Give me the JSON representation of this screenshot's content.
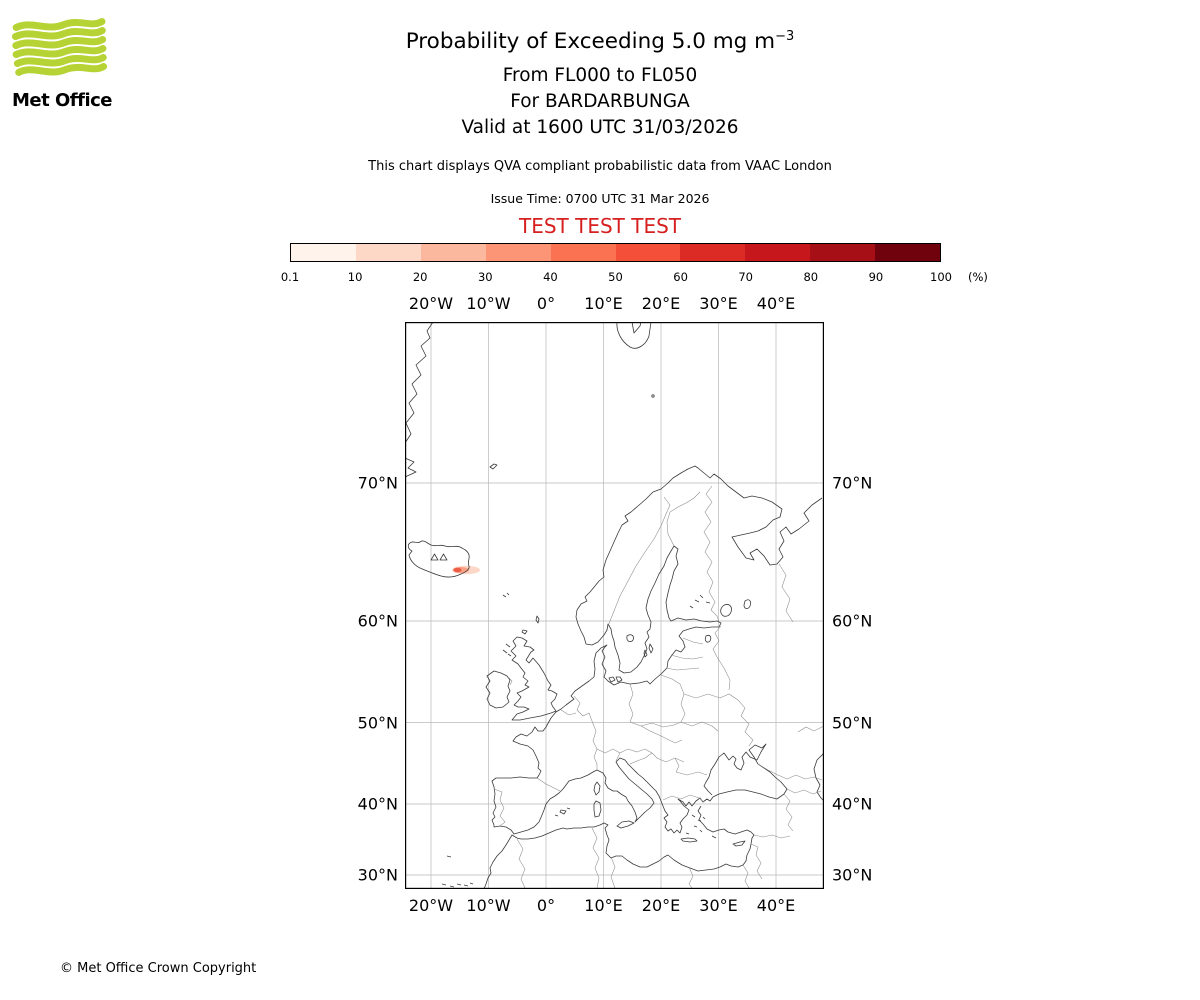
{
  "header": {
    "logo_label": "Met Office",
    "title": "Probability of Exceeding 5.0 mg m",
    "title_exp": "−3",
    "line1": "From FL000 to FL050",
    "line2": "For BARDARBUNGA",
    "line3": "Valid at 1600 UTC 31/03/2026",
    "note": "This chart displays QVA compliant probabilistic data from VAAC London",
    "issue": "Issue Time: 0700 UTC 31 Mar 2026",
    "test": "TEST TEST TEST"
  },
  "colorbar": {
    "ticks": [
      "0.1",
      "10",
      "20",
      "30",
      "40",
      "50",
      "60",
      "70",
      "80",
      "90",
      "100"
    ],
    "unit": "(%)",
    "colors": [
      "#fff3ec",
      "#fdd8c7",
      "#fcb79f",
      "#fc9576",
      "#fb7252",
      "#f44f39",
      "#dc2b25",
      "#c5171c",
      "#a50f15",
      "#70020e"
    ]
  },
  "map_axes": {
    "lon": [
      "20°W",
      "10°W",
      "0°",
      "10°E",
      "20°E",
      "30°E",
      "40°E"
    ],
    "lat": [
      "70°N",
      "60°N",
      "50°N",
      "40°N",
      "30°N"
    ]
  },
  "footer": {
    "copyright": "© Met Office Crown Copyright"
  },
  "chart_data": {
    "type": "heatmap",
    "title": "Probability of Exceeding 5.0 mg m^-3",
    "quantity": "Probability of volcanic ash concentration exceeding 5.0 mg m^-3",
    "vertical_layer": "FL000 to FL050",
    "volcano": "BARDARBUNGA",
    "valid_time": "1600 UTC 31/03/2026",
    "issue_time": "0700 UTC 31 Mar 2026",
    "data_source": "QVA compliant probabilistic data from VAAC London",
    "status_banner": "TEST TEST TEST",
    "colorscale_percent_boundaries": [
      0.1,
      10,
      20,
      30,
      40,
      50,
      60,
      70,
      80,
      90,
      100
    ],
    "colorscale_colors": [
      "#fff3ec",
      "#fdd8c7",
      "#fcb79f",
      "#fc9576",
      "#fb7252",
      "#f44f39",
      "#dc2b25",
      "#c5171c",
      "#a50f15",
      "#70020e"
    ],
    "legend_unit": "%",
    "map_projection_ticks": {
      "lon_deg": [
        -20,
        -10,
        0,
        10,
        20,
        30,
        40
      ],
      "lat_deg": [
        70,
        60,
        50,
        40,
        30
      ]
    },
    "map_extent_deg": {
      "lon_min": -24.5,
      "lon_max": 48.3,
      "lat_min": 28.0,
      "lat_max": 77.6
    },
    "plume": {
      "location": "small plume at the southeast coast of Iceland, near 63.5N 16W, extending east",
      "approx_lon_extent_deg": [
        -18,
        -12
      ],
      "approx_max_probability_percent": "10-40",
      "volcano_marker": "triangle symbols over central Iceland"
    }
  }
}
